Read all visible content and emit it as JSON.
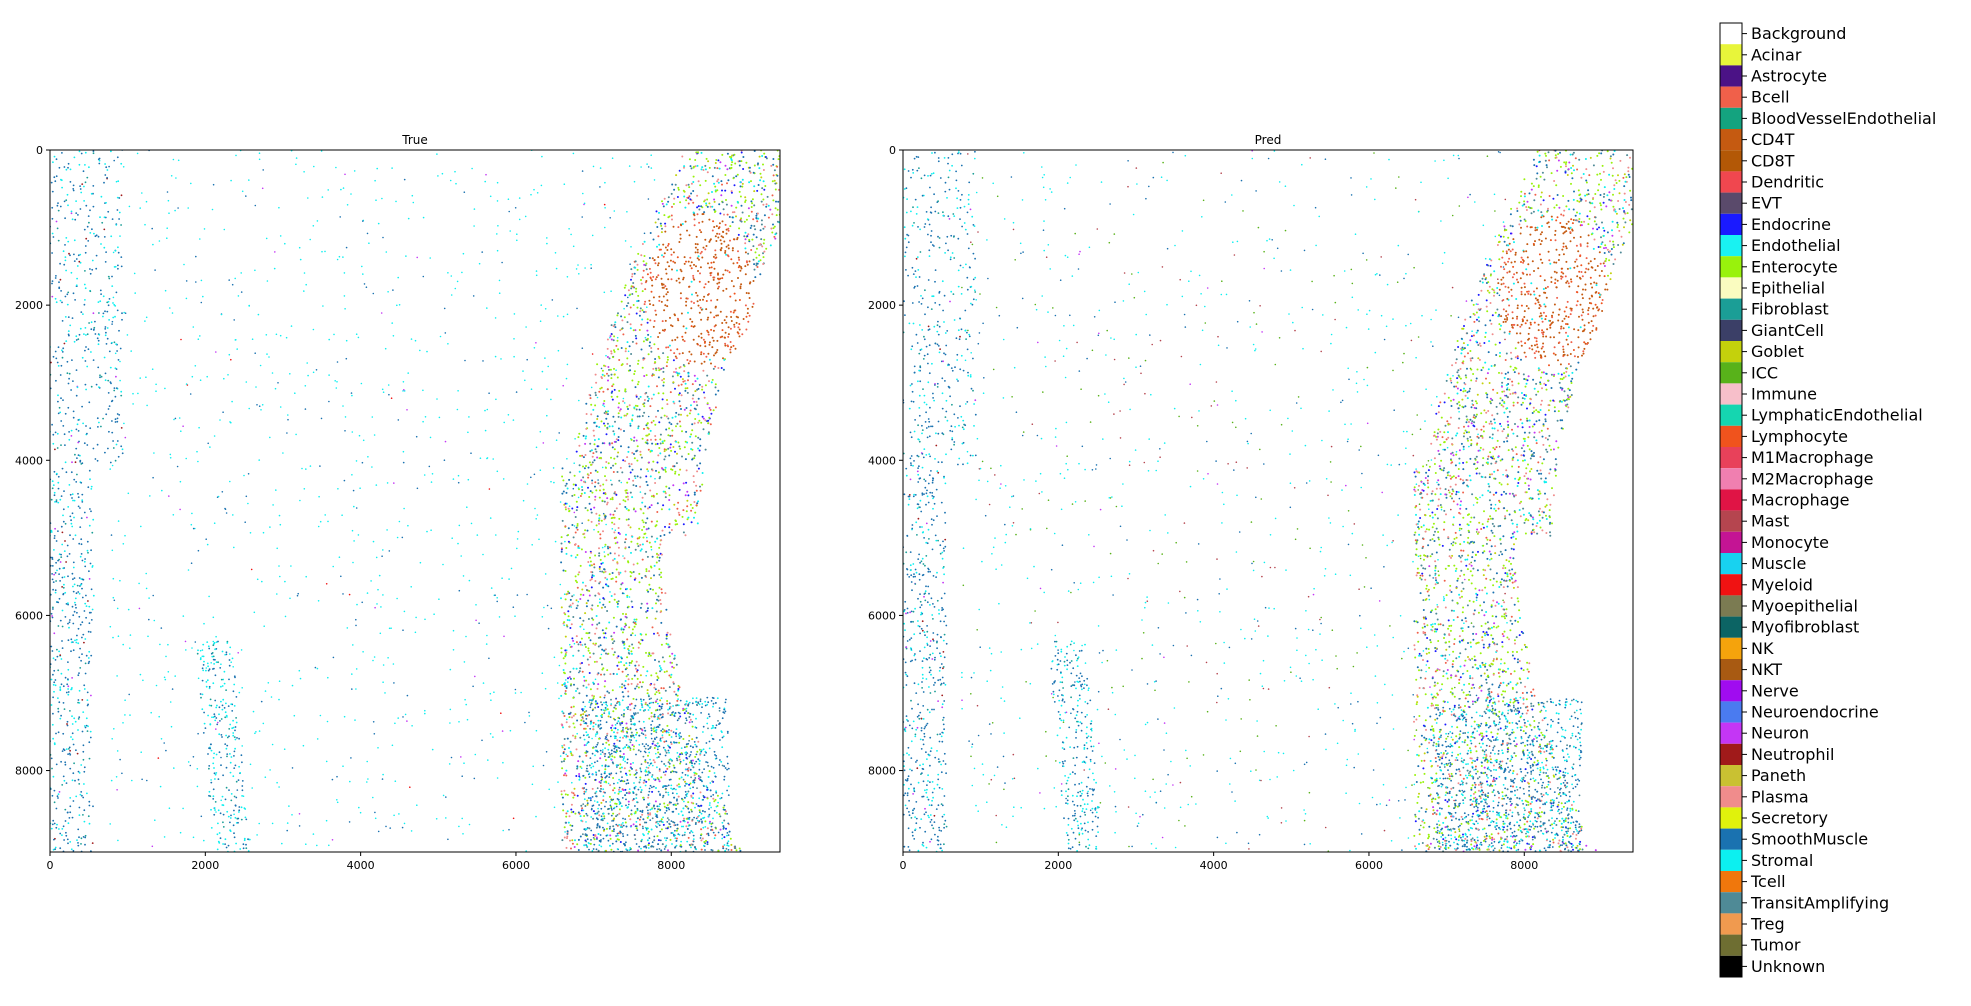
{
  "chart_data": [
    {
      "type": "scatter",
      "title": "True",
      "xlim": [
        0,
        9400
      ],
      "ylim": [
        9050,
        0
      ],
      "xticks": [
        0,
        2000,
        4000,
        6000,
        8000
      ],
      "yticks": [
        0,
        2000,
        4000,
        6000,
        8000
      ],
      "grid": false,
      "legend": "right"
    },
    {
      "type": "scatter",
      "title": "Pred",
      "xlim": [
        0,
        9400
      ],
      "ylim": [
        9050,
        0
      ],
      "xticks": [
        0,
        2000,
        4000,
        6000,
        8000
      ],
      "yticks": [
        0,
        2000,
        4000,
        6000,
        8000
      ],
      "grid": false,
      "legend": "right"
    }
  ],
  "legend": {
    "position": "right",
    "items": [
      {
        "label": "Background",
        "color": "#ffffff"
      },
      {
        "label": "Acinar",
        "color": "#e8f53a"
      },
      {
        "label": "Astrocyte",
        "color": "#4b1286"
      },
      {
        "label": "Bcell",
        "color": "#f0604a"
      },
      {
        "label": "BloodVesselEndothelial",
        "color": "#14a37f"
      },
      {
        "label": "CD4T",
        "color": "#c55a11"
      },
      {
        "label": "CD8T",
        "color": "#b35806"
      },
      {
        "label": "Dendritic",
        "color": "#f0474f"
      },
      {
        "label": "EVT",
        "color": "#5a4a6b"
      },
      {
        "label": "Endocrine",
        "color": "#1a1aff"
      },
      {
        "label": "Endothelial",
        "color": "#19f2f2"
      },
      {
        "label": "Enterocyte",
        "color": "#99f20c"
      },
      {
        "label": "Epithelial",
        "color": "#fafcc0"
      },
      {
        "label": "Fibroblast",
        "color": "#1b9e96"
      },
      {
        "label": "GiantCell",
        "color": "#3b3f67"
      },
      {
        "label": "Goblet",
        "color": "#c4d10c"
      },
      {
        "label": "ICC",
        "color": "#58b21a"
      },
      {
        "label": "Immune",
        "color": "#f7bfca"
      },
      {
        "label": "LymphaticEndothelial",
        "color": "#15d6b0"
      },
      {
        "label": "Lymphocyte",
        "color": "#f0531d"
      },
      {
        "label": "M1Macrophage",
        "color": "#e8415a"
      },
      {
        "label": "M2Macrophage",
        "color": "#f07fb0"
      },
      {
        "label": "Macrophage",
        "color": "#e01445"
      },
      {
        "label": "Mast",
        "color": "#b5454f"
      },
      {
        "label": "Monocyte",
        "color": "#c41494"
      },
      {
        "label": "Muscle",
        "color": "#18d2f0"
      },
      {
        "label": "Myeloid",
        "color": "#f01212"
      },
      {
        "label": "Myoepithelial",
        "color": "#7b7b52"
      },
      {
        "label": "Myofibroblast",
        "color": "#0c6464"
      },
      {
        "label": "NK",
        "color": "#f5a30c"
      },
      {
        "label": "NKT",
        "color": "#a85a12"
      },
      {
        "label": "Nerve",
        "color": "#a00cf0"
      },
      {
        "label": "Neuroendocrine",
        "color": "#4a7bf0"
      },
      {
        "label": "Neuron",
        "color": "#c436f5"
      },
      {
        "label": "Neutrophil",
        "color": "#a01a1a"
      },
      {
        "label": "Paneth",
        "color": "#c9c132"
      },
      {
        "label": "Plasma",
        "color": "#f08c8c"
      },
      {
        "label": "Secretory",
        "color": "#e0f20c"
      },
      {
        "label": "SmoothMuscle",
        "color": "#1a72b0"
      },
      {
        "label": "Stromal",
        "color": "#0cf0f0"
      },
      {
        "label": "Tcell",
        "color": "#f0770c"
      },
      {
        "label": "TransitAmplifying",
        "color": "#4f8a96"
      },
      {
        "label": "Treg",
        "color": "#f09a4f"
      },
      {
        "label": "Tumor",
        "color": "#6e6e32"
      },
      {
        "label": "Unknown",
        "color": "#000000"
      }
    ]
  }
}
